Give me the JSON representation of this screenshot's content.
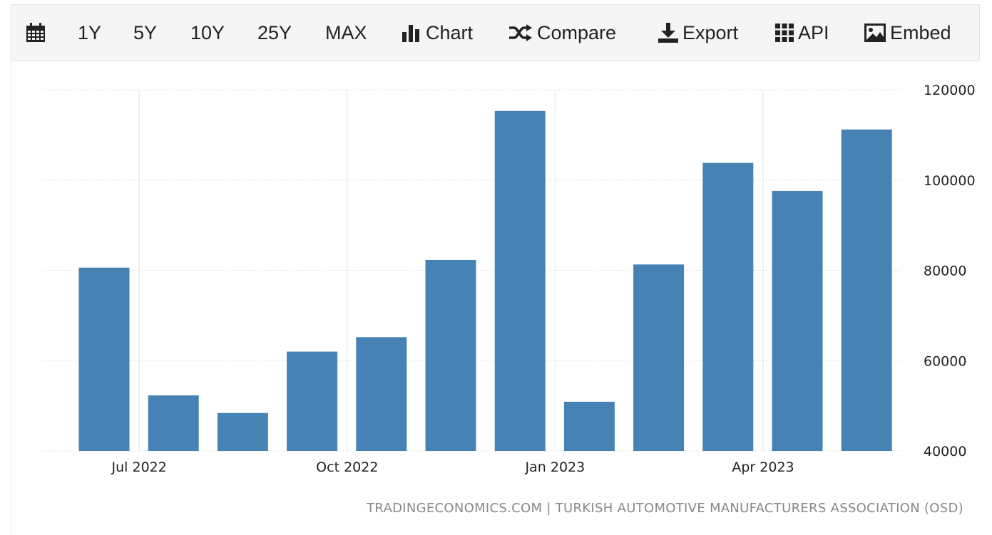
{
  "toolbar": {
    "calendar_icon": "calendar-icon",
    "ranges": [
      "1Y",
      "5Y",
      "10Y",
      "25Y",
      "MAX"
    ],
    "chart_label": "Chart",
    "compare_label": "Compare",
    "export_label": "Export",
    "api_label": "API",
    "embed_label": "Embed"
  },
  "chart_data": {
    "type": "bar",
    "categories": [
      "Jun 2022",
      "Jul 2022",
      "Aug 2022",
      "Sep 2022",
      "Oct 2022",
      "Nov 2022",
      "Dec 2022",
      "Jan 2023",
      "Feb 2023",
      "Mar 2023",
      "Apr 2023",
      "May 2023"
    ],
    "values": [
      80600,
      52300,
      48400,
      62000,
      65200,
      82300,
      115300,
      50900,
      81300,
      103800,
      97600,
      111200
    ],
    "x_tick_labels": [
      "Jul 2022",
      "Oct 2022",
      "Jan 2023",
      "Apr 2023"
    ],
    "y_tick_labels": [
      "120000",
      "100000",
      "80000",
      "60000",
      "40000"
    ],
    "ylim": [
      40000,
      120000
    ],
    "grid": true,
    "bar_color": "#4682b4"
  },
  "source": "TRADINGECONOMICS.COM | TURKISH AUTOMOTIVE MANUFACTURERS ASSOCIATION (OSD)"
}
